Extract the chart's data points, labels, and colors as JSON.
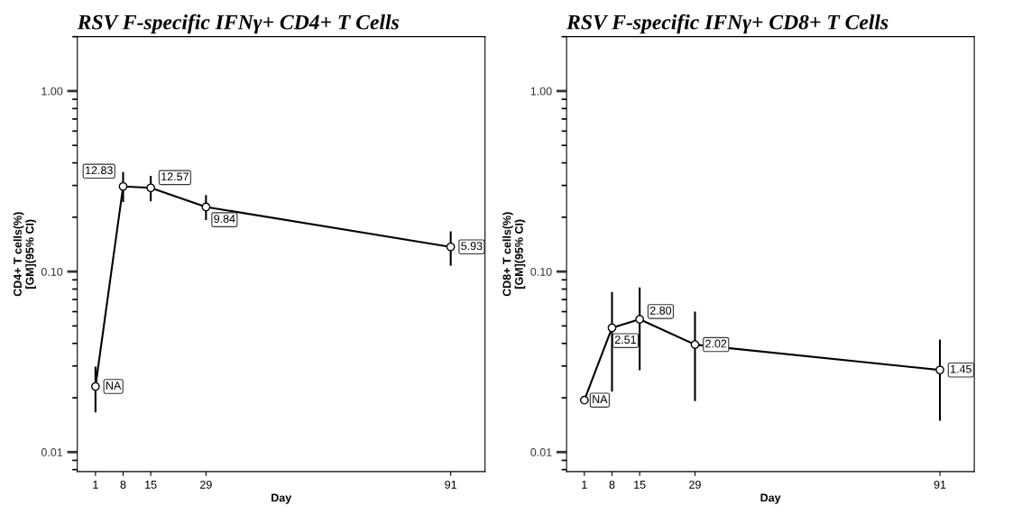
{
  "chart_data": [
    {
      "type": "line",
      "title": "RSV F-specific IFNγ+ CD4+ T Cells",
      "xlabel": "Day",
      "ylabel": "CD4+ T cells(%)\n[GM](95% CI)",
      "x": [
        1,
        8,
        15,
        29,
        91
      ],
      "series": [
        {
          "color": "#000000",
          "values": [
            0.0231,
            0.296,
            0.291,
            0.228,
            0.137
          ],
          "errors": [
            [
              0.0168,
              0.0294
            ],
            [
              0.246,
              0.352
            ],
            [
              0.248,
              0.335
            ],
            [
              0.195,
              0.262
            ],
            [
              0.109,
              0.165
            ]
          ]
        }
      ],
      "xlim": [
        -3.6,
        99.7
      ],
      "xticks": [
        1,
        8,
        15,
        29,
        91
      ],
      "ylim": [
        0.0078,
        2.0
      ],
      "yticks": [
        {
          "value": 0.01,
          "label": "0.01"
        },
        {
          "value": 0.1,
          "label": "0.10"
        },
        {
          "value": 1,
          "label": "1.00"
        }
      ],
      "log": true,
      "grid": false,
      "legend": false,
      "marker": "circle",
      "line_style": "solid",
      "annotations": [
        {
          "text": "NA",
          "x": 1,
          "y": 0.0231
        },
        {
          "text": "12.83",
          "x": 8,
          "y": 0.296
        },
        {
          "text": "12.57",
          "x": 15,
          "y": 0.291
        },
        {
          "text": "9.84",
          "x": 29,
          "y": 0.228
        },
        {
          "text": "5.93",
          "x": 91,
          "y": 0.137
        }
      ]
    },
    {
      "type": "line",
      "title": "RSV F-specific IFNγ+ CD8+ T Cells",
      "xlabel": "Day",
      "ylabel": "CD8+ T cells(%)\n[GM](95% CI)",
      "x": [
        1,
        8,
        15,
        29,
        91
      ],
      "series": [
        {
          "color": "#000000",
          "values": [
            0.0194,
            0.0488,
            0.0544,
            0.0394,
            0.0285
          ],
          "errors": [
            null,
            [
              0.0219,
              0.0762
            ],
            [
              0.0288,
              0.0806
            ],
            [
              0.0194,
              0.0593
            ],
            [
              0.0151,
              0.0415
            ]
          ]
        }
      ],
      "xlim": [
        -3.5,
        99.7
      ],
      "xticks": [
        1,
        8,
        15,
        29,
        91
      ],
      "ylim": [
        0.0078,
        2.0
      ],
      "yticks": [
        {
          "value": 0.01,
          "label": "0.01"
        },
        {
          "value": 0.1,
          "label": "0.10"
        },
        {
          "value": 1,
          "label": "1.00"
        }
      ],
      "log": true,
      "grid": false,
      "legend": false,
      "marker": "circle",
      "line_style": "solid",
      "annotations": [
        {
          "text": "NA",
          "x": 1,
          "y": 0.0194
        },
        {
          "text": "2.51",
          "x": 8,
          "y": 0.0488
        },
        {
          "text": "2.80",
          "x": 15,
          "y": 0.0544
        },
        {
          "text": "2.02",
          "x": 29,
          "y": 0.0394
        },
        {
          "text": "1.45",
          "x": 91,
          "y": 0.0285
        }
      ]
    }
  ]
}
